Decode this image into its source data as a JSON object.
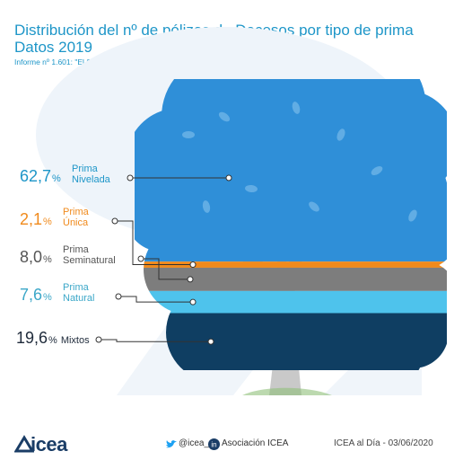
{
  "title": "Distribución del nº de pólizas de Decesos por tipo de prima Datos 2019",
  "subtitle": "Informe nº 1.601: \"El Seguro de Decesos. Año 2019\"",
  "chart_data": {
    "type": "bar",
    "categories": [
      "Prima Nivelada",
      "Prima Única",
      "Prima Seminatural",
      "Prima Natural",
      "Mixtos"
    ],
    "values": [
      62.7,
      2.1,
      8.0,
      7.6,
      19.6
    ],
    "value_labels": [
      "62,7",
      "2,1",
      "8,0",
      "7,6",
      "19,6"
    ],
    "unit": "%",
    "label_lines": [
      [
        "Prima",
        "Nivelada"
      ],
      [
        "Prima",
        "Única"
      ],
      [
        "Prima",
        "Seminatural"
      ],
      [
        "Prima",
        "Natural"
      ],
      [
        "Mixtos"
      ]
    ],
    "colors": [
      "#2f8fd8",
      "#f08a1c",
      "#7d7d7d",
      "#4ec3ec",
      "#0f3e62"
    ],
    "label_colors": [
      "#1e96c8",
      "#f08a1c",
      "#555555",
      "#3ba7c8",
      "#1e2a3a"
    ]
  },
  "footer": {
    "logo_text": "icea",
    "twitter": "@icea_es",
    "linkedin": "Asociación ICEA",
    "date": "ICEA al Día - 03/06/2020",
    "colors": {
      "logo": "#1a3d66",
      "twitter": "#1da1f2",
      "linkedin": "#1a3d66"
    },
    "icons": [
      "icea-logo-icon",
      "twitter-icon",
      "linkedin-icon"
    ]
  }
}
